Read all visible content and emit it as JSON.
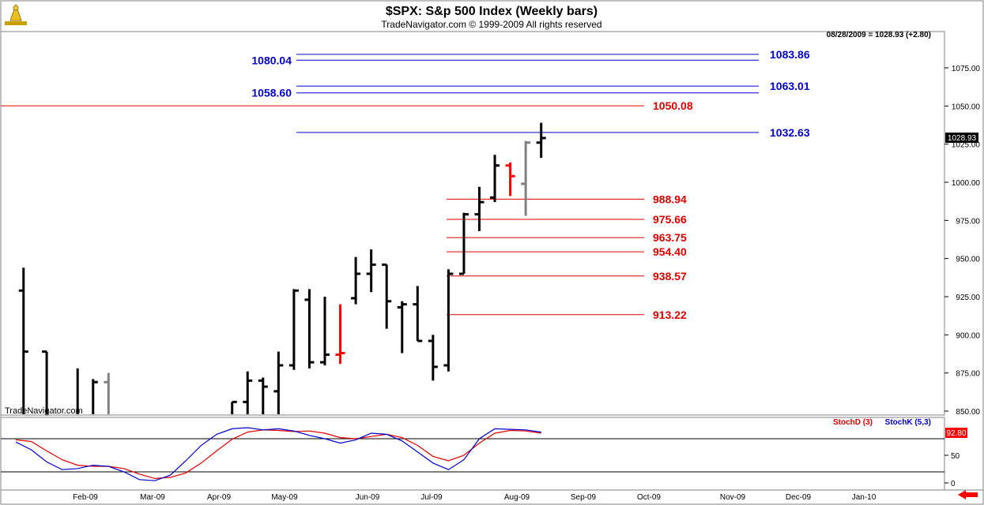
{
  "header": {
    "title": "$SPX:  S&p 500 Index  (Weekly bars)",
    "subtitle": "TradeNavigator.com © 1999-2009 All rights reserved",
    "quote": "08/28/2009 = 1028.93 (+2.80)",
    "watermark": "TradeNavigator.com"
  },
  "chart_data": [
    {
      "type": "bar",
      "title": "$SPX:  S&p 500 Index  (Weekly bars)",
      "ylim": [
        840,
        1090
      ],
      "y_ticks": [
        "1075.00",
        "1050.00",
        "1025.00",
        "1000.00",
        "975.00",
        "950.00",
        "925.00",
        "900.00",
        "875.00",
        "850.00"
      ],
      "last_price_label": "1028.93",
      "colors": {
        "up": "#000000",
        "down_red": "#ff0000",
        "down_green": "#00dd00",
        "inside_gray": "#808080"
      },
      "bars": [
        {
          "t": 0.5,
          "o": 929,
          "h": 944,
          "l": 818,
          "c": 889,
          "color": "#000000"
        },
        {
          "t": 2,
          "o": 889,
          "h": 889,
          "l": 805,
          "c": 822,
          "color": "#000000"
        },
        {
          "t": 3,
          "o": 836,
          "h": 840,
          "l": 805,
          "c": 825,
          "color": "#000000"
        },
        {
          "t": 4,
          "o": 830,
          "h": 878,
          "l": 820,
          "c": 840,
          "color": "#000000"
        },
        {
          "t": 5,
          "o": 840,
          "h": 871,
          "l": 826,
          "c": 869,
          "color": "#000000"
        },
        {
          "t": 6,
          "o": 869,
          "h": 875,
          "l": 827,
          "c": 830,
          "color": "#808080"
        },
        {
          "t": 14,
          "o": 840,
          "h": 856,
          "l": 826,
          "c": 856,
          "color": "#000000"
        },
        {
          "t": 15,
          "o": 856,
          "h": 876,
          "l": 835,
          "c": 870,
          "color": "#000000"
        },
        {
          "t": 16,
          "o": 870,
          "h": 872,
          "l": 840,
          "c": 866,
          "color": "#000000"
        },
        {
          "t": 17,
          "o": 863,
          "h": 889,
          "l": 835,
          "c": 880,
          "color": "#000000"
        },
        {
          "t": 18,
          "o": 880,
          "h": 930,
          "l": 877,
          "c": 929,
          "color": "#000000"
        },
        {
          "t": 19,
          "o": 923,
          "h": 930,
          "l": 878,
          "c": 882,
          "color": "#000000"
        },
        {
          "t": 20,
          "o": 882,
          "h": 925,
          "l": 880,
          "c": 887,
          "color": "#000000"
        },
        {
          "t": 21,
          "o": 887,
          "h": 920,
          "l": 881,
          "c": 888,
          "color": "#ff0000"
        },
        {
          "t": 22,
          "o": 924,
          "h": 951,
          "l": 920,
          "c": 940,
          "color": "#000000"
        },
        {
          "t": 23,
          "o": 940,
          "h": 956,
          "l": 928,
          "c": 946,
          "color": "#000000"
        },
        {
          "t": 24,
          "o": 946,
          "h": 946,
          "l": 904,
          "c": 922,
          "color": "#000000"
        },
        {
          "t": 25,
          "o": 918,
          "h": 922,
          "l": 888,
          "c": 920,
          "color": "#000000"
        },
        {
          "t": 26,
          "o": 920,
          "h": 932,
          "l": 896,
          "c": 896,
          "color": "#000000"
        },
        {
          "t": 27,
          "o": 896,
          "h": 900,
          "l": 870,
          "c": 879,
          "color": "#000000"
        },
        {
          "t": 28,
          "o": 880,
          "h": 943,
          "l": 876,
          "c": 940,
          "color": "#000000"
        },
        {
          "t": 29,
          "o": 940,
          "h": 980,
          "l": 940,
          "c": 979,
          "color": "#000000"
        },
        {
          "t": 30,
          "o": 979,
          "h": 997,
          "l": 968,
          "c": 987,
          "color": "#000000"
        },
        {
          "t": 31,
          "o": 990,
          "h": 1018,
          "l": 987,
          "c": 1011,
          "color": "#000000"
        },
        {
          "t": 32,
          "o": 1011,
          "h": 1013,
          "l": 991,
          "c": 1004,
          "color": "#ff0000"
        },
        {
          "t": 33,
          "o": 999,
          "h": 1027,
          "l": 978,
          "c": 1026,
          "color": "#808080"
        },
        {
          "t": 34,
          "o": 1026,
          "h": 1039,
          "l": 1016,
          "c": 1029,
          "color": "#000000"
        }
      ],
      "levels": [
        {
          "value": 1083.86,
          "label": "1083.86",
          "color": "#0000cc",
          "label_side": "right"
        },
        {
          "value": 1080.04,
          "label": "1080.04",
          "color": "#0000cc",
          "label_side": "left"
        },
        {
          "value": 1063.01,
          "label": "1063.01",
          "color": "#0000cc",
          "label_side": "right"
        },
        {
          "value": 1058.6,
          "label": "1058.60",
          "color": "#0000cc",
          "label_side": "left"
        },
        {
          "value": 1050.08,
          "label": "1050.08",
          "color": "#dd0000",
          "label_side": "right"
        },
        {
          "value": 1032.63,
          "label": "1032.63",
          "color": "#0000cc",
          "label_side": "right"
        },
        {
          "value": 988.94,
          "label": "988.94",
          "color": "#dd0000",
          "label_side": "right"
        },
        {
          "value": 975.66,
          "label": "975.66",
          "color": "#dd0000",
          "label_side": "right"
        },
        {
          "value": 963.75,
          "label": "963.75",
          "color": "#dd0000",
          "label_side": "right"
        },
        {
          "value": 954.4,
          "label": "954.40",
          "color": "#dd0000",
          "label_side": "right"
        },
        {
          "value": 938.57,
          "label": "938.57",
          "color": "#dd0000",
          "label_side": "right"
        },
        {
          "value": 913.22,
          "label": "913.22",
          "color": "#dd0000",
          "label_side": "right"
        }
      ]
    },
    {
      "type": "line",
      "ylim": [
        -5,
        105
      ],
      "y_ticks": [
        "50",
        "0"
      ],
      "ref_lines": [
        80,
        20
      ],
      "last_value_label": "92.80",
      "legend": [
        "StochD (3)",
        "StochK (5,3)"
      ],
      "series": [
        {
          "name": "StochD (3)",
          "color": "#dd0000",
          "values": [
            [
              0,
              78
            ],
            [
              1,
              75
            ],
            [
              2,
              58
            ],
            [
              3,
              42
            ],
            [
              4,
              32
            ],
            [
              5,
              30
            ],
            [
              6,
              30
            ],
            [
              7,
              26
            ],
            [
              8,
              16
            ],
            [
              9,
              8
            ],
            [
              10,
              10
            ],
            [
              11,
              18
            ],
            [
              12,
              36
            ],
            [
              13,
              58
            ],
            [
              14,
              79
            ],
            [
              15,
              92
            ],
            [
              16,
              96
            ],
            [
              17,
              95
            ],
            [
              18,
              93
            ],
            [
              19,
              94
            ],
            [
              20,
              90
            ],
            [
              21,
              82
            ],
            [
              22,
              80
            ],
            [
              23,
              84
            ],
            [
              24,
              88
            ],
            [
              25,
              82
            ],
            [
              26,
              68
            ],
            [
              27,
              48
            ],
            [
              28,
              40
            ],
            [
              29,
              50
            ],
            [
              30,
              72
            ],
            [
              31,
              90
            ],
            [
              32,
              95
            ],
            [
              33,
              94
            ],
            [
              34,
              90
            ]
          ]
        },
        {
          "name": "StochK (5,3)",
          "color": "#0000cc",
          "values": [
            [
              0,
              74
            ],
            [
              1,
              60
            ],
            [
              2,
              38
            ],
            [
              3,
              24
            ],
            [
              4,
              26
            ],
            [
              5,
              32
            ],
            [
              6,
              30
            ],
            [
              7,
              20
            ],
            [
              8,
              6
            ],
            [
              9,
              4
            ],
            [
              10,
              14
            ],
            [
              11,
              40
            ],
            [
              12,
              68
            ],
            [
              13,
              88
            ],
            [
              14,
              98
            ],
            [
              15,
              100
            ],
            [
              16,
              96
            ],
            [
              17,
              98
            ],
            [
              18,
              94
            ],
            [
              19,
              86
            ],
            [
              20,
              80
            ],
            [
              21,
              72
            ],
            [
              22,
              78
            ],
            [
              23,
              90
            ],
            [
              24,
              88
            ],
            [
              25,
              76
            ],
            [
              26,
              56
            ],
            [
              27,
              36
            ],
            [
              28,
              24
            ],
            [
              29,
              42
            ],
            [
              30,
              80
            ],
            [
              31,
              98
            ],
            [
              32,
              97
            ],
            [
              33,
              96
            ],
            [
              34,
              92
            ]
          ]
        }
      ]
    }
  ],
  "x_axis": {
    "labels": [
      "Feb-09",
      "Mar-09",
      "Apr-09",
      "May-09",
      "Jun-09",
      "Jul-09",
      "Aug-09",
      "Sep-09",
      "Oct-09",
      "Nov-09",
      "Dec-09",
      "Jan-10"
    ]
  }
}
